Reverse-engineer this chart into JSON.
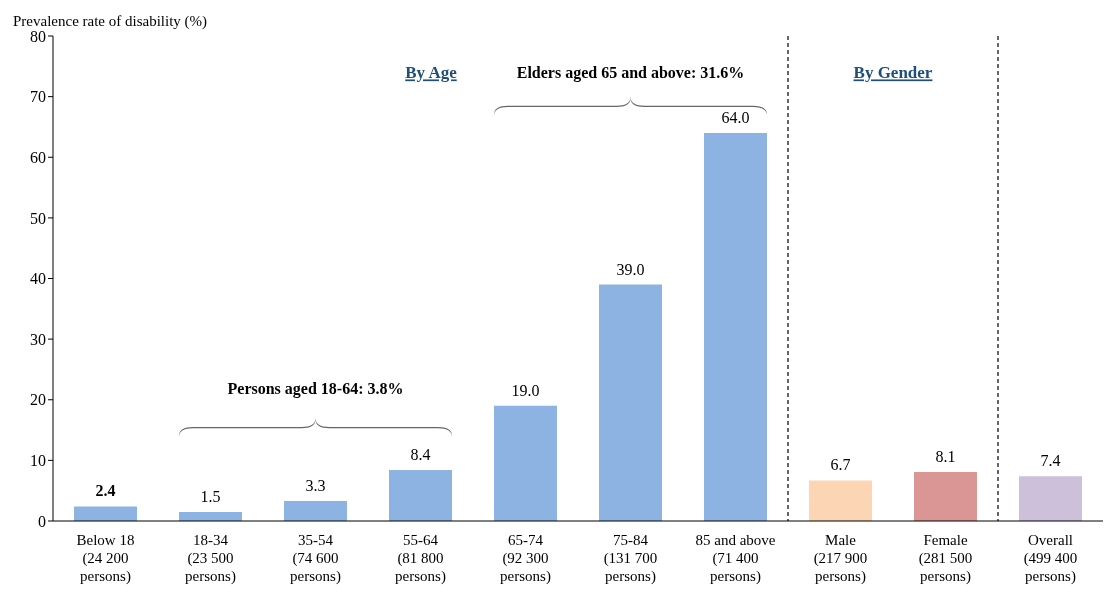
{
  "chart_data": {
    "type": "bar",
    "ylabel": "Prevalence rate of disability (%)",
    "categories": [
      "Below 18\n(24 200\npersons)",
      "18-34\n(23 500\npersons)",
      "35-54\n(74 600\npersons)",
      "55-64\n(81 800\npersons)",
      "65-74\n(92 300\npersons)",
      "75-84\n(131 700\npersons)",
      "85 and above\n(71 400\npersons)",
      "Male\n(217 900\npersons)",
      "Female\n(281 500\npersons)",
      "Overall\n(499 400\npersons)"
    ],
    "values": [
      2.4,
      1.5,
      3.3,
      8.4,
      19.0,
      39.0,
      64.0,
      6.7,
      8.1,
      7.4
    ],
    "value_labels": [
      "2.4",
      "1.5",
      "3.3",
      "8.4",
      "19.0",
      "39.0",
      "64.0",
      "6.7",
      "8.1",
      "7.4"
    ],
    "colors": [
      "#8db3e2",
      "#8db3e2",
      "#8db3e2",
      "#8db3e2",
      "#8db3e2",
      "#8db3e2",
      "#8db3e2",
      "#fcd5b4",
      "#da9694",
      "#ccc0da"
    ],
    "ylim": [
      0,
      80
    ],
    "yticks": [
      0,
      10,
      20,
      30,
      40,
      50,
      60,
      70,
      80
    ],
    "annotations": [
      "By Age",
      "By Gender",
      "Elders aged 65 and above: 31.6%",
      "Persons aged 18-64: 3.8%"
    ],
    "grid": false,
    "legend": false
  }
}
